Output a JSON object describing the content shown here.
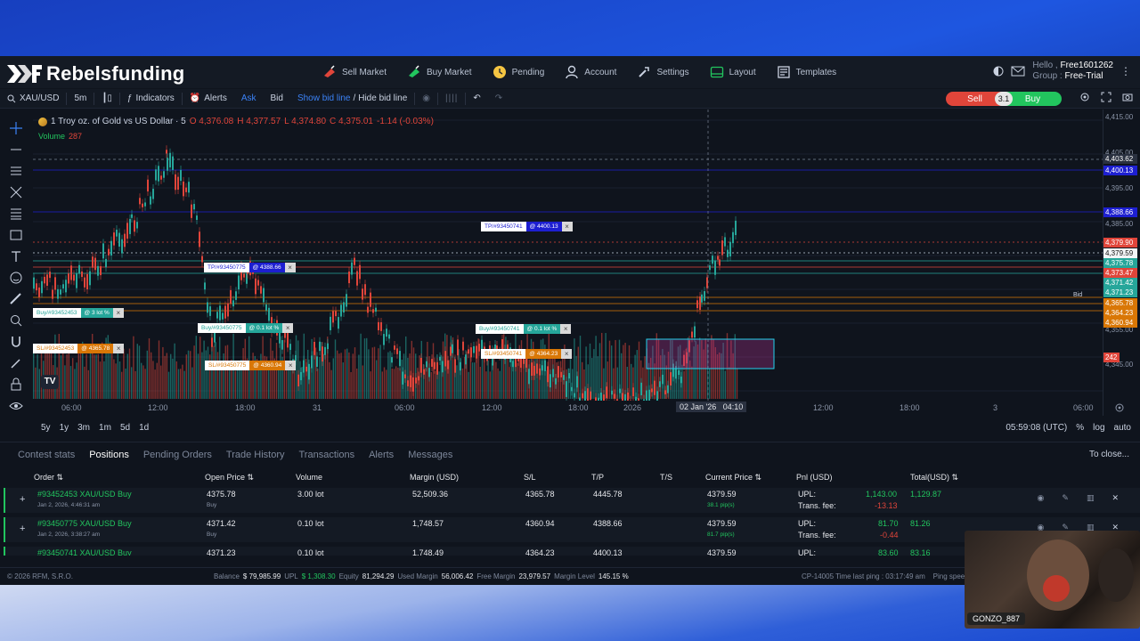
{
  "brand": {
    "name": "Rebelsfunding"
  },
  "nav": [
    {
      "label": "Sell Market",
      "icon": "sell-market-icon"
    },
    {
      "label": "Buy Market",
      "icon": "buy-market-icon"
    },
    {
      "label": "Pending",
      "icon": "pending-icon"
    },
    {
      "label": "Account",
      "icon": "account-icon"
    },
    {
      "label": "Settings",
      "icon": "settings-icon"
    },
    {
      "label": "Layout",
      "icon": "layout-icon"
    },
    {
      "label": "Templates",
      "icon": "templates-icon"
    }
  ],
  "user": {
    "hello": "Hello ,",
    "id": "Free1601262",
    "group_label": "Group :",
    "group": "Free-Trial"
  },
  "toolbar": {
    "symbol": "XAU/USD",
    "interval": "5m",
    "indicators": "Indicators",
    "alerts": "Alerts",
    "ask": "Ask",
    "bid": "Bid",
    "show_bid": "Show bid line",
    "slash": "/",
    "hide_bid": "Hide bid line",
    "sell": "Sell",
    "spread": "3.1",
    "buy": "Buy"
  },
  "legend": {
    "title": "1 Troy oz. of Gold vs US Dollar · 5",
    "o": "O 4,376.08",
    "h": "H 4,377.57",
    "l": "L 4,374.80",
    "c": "C 4,375.01",
    "chg": "-1.14 (-0.03%)",
    "volume_label": "Volume",
    "volume_value": "287"
  },
  "price_axis": {
    "ticks": [
      "4,415.00",
      "4,405.00",
      "4,395.00",
      "4,385.00",
      "4,355.00",
      "4,345.00"
    ],
    "tags": [
      {
        "text": "4,403.62",
        "color": "#2a3140"
      },
      {
        "text": "4,400.13",
        "color": "#1d1fd1"
      },
      {
        "text": "4,388.66",
        "color": "#1d1fd1"
      },
      {
        "text": "4,379.90",
        "color": "#e0453a"
      },
      {
        "text": "4,379.59",
        "color": "#f3f4f6"
      },
      {
        "text": "4,375.78",
        "color": "#26a69a"
      },
      {
        "text": "4,373.47",
        "color": "#e0453a"
      },
      {
        "text": "4,371.42",
        "color": "#26a69a"
      },
      {
        "text": "4,371.23",
        "color": "#26a69a"
      },
      {
        "text": "4,365.78",
        "color": "#d97706"
      },
      {
        "text": "4,364.23",
        "color": "#d97706"
      },
      {
        "text": "4,360.94",
        "color": "#d97706"
      },
      {
        "text": "242",
        "color": "#e0453a"
      }
    ],
    "bid_label": "Bid"
  },
  "time_axis": {
    "ticks": [
      "06:00",
      "12:00",
      "18:00",
      "31",
      "06:00",
      "12:00",
      "18:00",
      "2026",
      "12:00",
      "18:00",
      "3",
      "06:00"
    ],
    "cursor": "02 Jan '26   04:10"
  },
  "order_tags": [
    {
      "left": "TP/#93450741",
      "right": "@ 4400.13",
      "color": "#1d1fd1"
    },
    {
      "left": "TP/#93450775",
      "right": "@ 4388.66",
      "color": "#1d1fd1"
    },
    {
      "left": "Buy/#93452453",
      "right": "@ 3 lot %",
      "color": "#26a69a"
    },
    {
      "left": "Buy/#93450775",
      "right": "@ 0.1 lot %",
      "color": "#26a69a"
    },
    {
      "left": "Buy/#93450741",
      "right": "@ 0.1 lot %",
      "color": "#26a69a"
    },
    {
      "left": "SL/#93452453",
      "right": "@ 4365.78",
      "color": "#d97706"
    },
    {
      "left": "SL/#93450741",
      "right": "@ 4364.23",
      "color": "#d97706"
    },
    {
      "left": "SL/#93450775",
      "right": "@ 4360.94",
      "color": "#d97706"
    }
  ],
  "ranges": [
    "5y",
    "1y",
    "3m",
    "1m",
    "5d",
    "1d"
  ],
  "range_right": {
    "clock": "05:59:08 (UTC)",
    "pct": "%",
    "log": "log",
    "auto": "auto"
  },
  "tabs": [
    "Contest stats",
    "Positions",
    "Pending Orders",
    "Trade History",
    "Transactions",
    "Alerts",
    "Messages"
  ],
  "tab_close": "To close...",
  "columns": [
    "Order",
    "Open Price",
    "Volume",
    "Margin (USD)",
    "S/L",
    "T/P",
    "T/S",
    "Current Price",
    "Pnl (USD)",
    "Total(USD)"
  ],
  "rows": [
    {
      "order": "#93452453 XAU/USD Buy",
      "date": "Jan 2, 2026, 4:46:31 am",
      "open": "4375.78",
      "side": "Buy",
      "volume": "3.00 lot",
      "margin": "52,509.36",
      "sl": "4365.78",
      "tp": "4445.78",
      "current": "4379.59",
      "pips": "38.1 pip(s)",
      "upl_label": "UPL:",
      "upl": "1,143.00",
      "fee_label": "Trans. fee:",
      "fee": "-13.13",
      "total": "1,129.87"
    },
    {
      "order": "#93450775 XAU/USD Buy",
      "date": "Jan 2, 2026, 3:38:27 am",
      "open": "4371.42",
      "side": "Buy",
      "volume": "0.10 lot",
      "margin": "1,748.57",
      "sl": "4360.94",
      "tp": "4388.66",
      "current": "4379.59",
      "pips": "81.7 pip(s)",
      "upl_label": "UPL:",
      "upl": "81.70",
      "fee_label": "Trans. fee:",
      "fee": "-0.44",
      "total": "81.26"
    },
    {
      "order": "#93450741 XAU/USD Buy",
      "date": "",
      "open": "4371.23",
      "side": "",
      "volume": "0.10 lot",
      "margin": "1,748.49",
      "sl": "4364.23",
      "tp": "4400.13",
      "current": "4379.59",
      "pips": "",
      "upl_label": "UPL:",
      "upl": "83.60",
      "fee_label": "",
      "fee": "",
      "total": "83.16"
    }
  ],
  "footer": {
    "copyright": "© 2026 RFM, S.R.O.",
    "balance_label": "Balance",
    "balance": "$ 79,985.99",
    "upl_label": "UPL",
    "upl": "$ 1,308.30",
    "equity_label": "Equity",
    "equity": "81,294.29",
    "used_label": "Used Margin",
    "used": "56,006.42",
    "free_label": "Free Margin",
    "free": "23,979.57",
    "level_label": "Margin Level",
    "level": "145.15 %",
    "ping": "CP-14005 Time last ping : 03:17:49 am    Ping speed :"
  },
  "webcam": {
    "name": "GONZO_887"
  }
}
